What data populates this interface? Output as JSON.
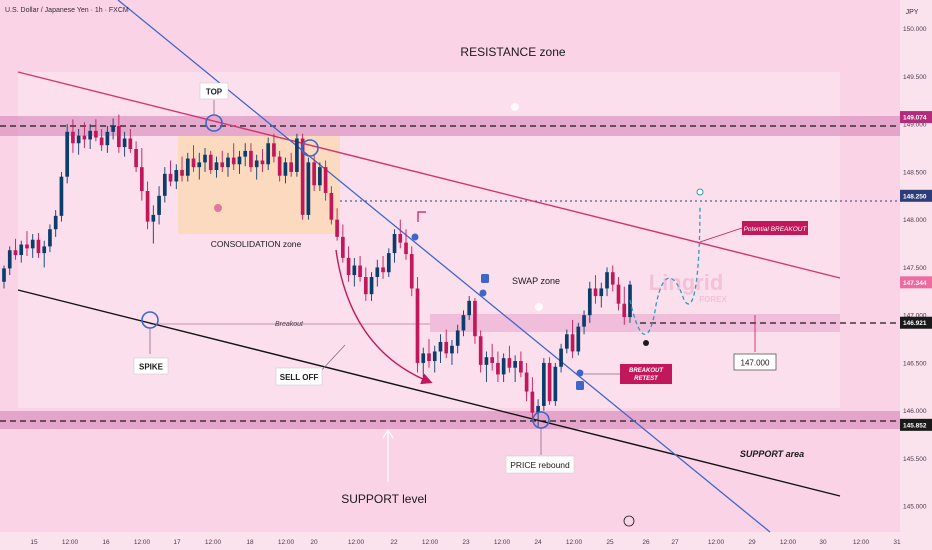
{
  "header": {
    "title": "U.S. Dollar / Japanese Yen · 1h · FXCM",
    "currency": "JPY"
  },
  "watermark": {
    "brand": "Lingrid",
    "sub": "FOREX"
  },
  "chart_data": {
    "type": "candlestick",
    "symbol": "USDJPY",
    "timeframe": "1h",
    "ylim": [
      144.73,
      150.3
    ],
    "y_ticks": [
      {
        "value": 150.0,
        "label": "150.000"
      },
      {
        "value": 149.5,
        "label": "149.500"
      },
      {
        "value": 149.0,
        "label": "149.000"
      },
      {
        "value": 148.5,
        "label": "148.500"
      },
      {
        "value": 148.0,
        "label": "148.000"
      },
      {
        "value": 147.5,
        "label": "147.500"
      },
      {
        "value": 147.0,
        "label": "147.000"
      },
      {
        "value": 146.5,
        "label": "146.500"
      },
      {
        "value": 146.0,
        "label": "146.000"
      },
      {
        "value": 145.5,
        "label": "145.500"
      },
      {
        "value": 145.0,
        "label": "145.000"
      }
    ],
    "x_ticks": [
      "15",
      "12:00",
      "16",
      "12:00",
      "17",
      "12:00",
      "18",
      "12:00",
      "20",
      "12:00",
      "22",
      "12:00",
      "23",
      "12:00",
      "24",
      "12:00",
      "25",
      "12:00",
      "26",
      "27",
      "12:00",
      "29",
      "12:00",
      "30",
      "12:00",
      "31"
    ],
    "price_badges": [
      {
        "value": 149.074,
        "label": "149.074",
        "color": "#b32b7a"
      },
      {
        "value": 148.25,
        "label": "148.250",
        "color": "#2c3e7a"
      },
      {
        "value": 147.344,
        "label": "147.344",
        "color": "#f06aa0"
      },
      {
        "value": 146.921,
        "label": "146.921",
        "color": "#1a1a1a"
      },
      {
        "value": 145.852,
        "label": "145.852",
        "color": "#1a1a1a"
      }
    ],
    "target_label": "147.000",
    "zones": [
      {
        "name": "resistance",
        "label": "RESISTANCE zone"
      },
      {
        "name": "consolidation",
        "label": "CONSOLIDATION zone"
      },
      {
        "name": "swap",
        "label": "SWAP zone"
      },
      {
        "name": "support",
        "label": "SUPPORT area"
      }
    ],
    "annotations": {
      "top": "TOP",
      "spike": "SPIKE",
      "sell_off": "SELL OFF",
      "breakout": "Breakout",
      "price_rebound": "PRICE rebound",
      "support_level": "SUPPORT level",
      "breakout_retest": [
        "BREAKOUT",
        "RETEST"
      ],
      "potential_breakout": "Potential BREAKOUT"
    },
    "candles": [
      [
        147.35,
        147.52,
        147.28,
        147.49
      ],
      [
        147.49,
        147.72,
        147.42,
        147.68
      ],
      [
        147.68,
        147.8,
        147.58,
        147.63
      ],
      [
        147.63,
        147.78,
        147.55,
        147.74
      ],
      [
        147.74,
        147.88,
        147.62,
        147.7
      ],
      [
        147.7,
        147.85,
        147.6,
        147.79
      ],
      [
        147.79,
        147.86,
        147.6,
        147.65
      ],
      [
        147.65,
        147.78,
        147.5,
        147.72
      ],
      [
        147.72,
        147.95,
        147.66,
        147.9
      ],
      [
        147.9,
        148.1,
        147.82,
        148.04
      ],
      [
        148.04,
        148.5,
        147.98,
        148.45
      ],
      [
        148.45,
        149.0,
        148.38,
        148.92
      ],
      [
        148.92,
        149.05,
        148.7,
        148.8
      ],
      [
        148.8,
        148.95,
        148.68,
        148.88
      ],
      [
        148.88,
        149.02,
        148.75,
        148.84
      ],
      [
        148.84,
        149.0,
        148.74,
        148.93
      ],
      [
        148.93,
        149.05,
        148.82,
        148.86
      ],
      [
        148.86,
        148.95,
        148.72,
        148.78
      ],
      [
        148.78,
        148.98,
        148.7,
        148.92
      ],
      [
        148.92,
        149.06,
        148.84,
        148.98
      ],
      [
        148.98,
        149.1,
        148.7,
        148.76
      ],
      [
        148.76,
        148.92,
        148.66,
        148.85
      ],
      [
        148.85,
        148.95,
        148.7,
        148.74
      ],
      [
        148.74,
        148.82,
        148.5,
        148.55
      ],
      [
        148.55,
        148.75,
        148.2,
        148.3
      ],
      [
        148.3,
        148.4,
        147.9,
        147.98
      ],
      [
        147.98,
        148.15,
        147.75,
        148.05
      ],
      [
        148.05,
        148.35,
        147.95,
        148.25
      ],
      [
        148.25,
        148.55,
        148.18,
        148.48
      ],
      [
        148.48,
        148.62,
        148.35,
        148.4
      ],
      [
        148.4,
        148.58,
        148.32,
        148.52
      ],
      [
        148.52,
        148.66,
        148.4,
        148.46
      ],
      [
        148.46,
        148.7,
        148.4,
        148.64
      ],
      [
        148.64,
        148.78,
        148.5,
        148.55
      ],
      [
        148.55,
        148.7,
        148.42,
        148.6
      ],
      [
        148.6,
        148.75,
        148.5,
        148.68
      ],
      [
        148.68,
        148.72,
        148.48,
        148.52
      ],
      [
        148.52,
        148.66,
        148.44,
        148.6
      ],
      [
        148.6,
        148.72,
        148.5,
        148.55
      ],
      [
        148.55,
        148.7,
        148.45,
        148.65
      ],
      [
        148.65,
        148.8,
        148.52,
        148.58
      ],
      [
        148.58,
        148.72,
        148.48,
        148.66
      ],
      [
        148.66,
        148.8,
        148.56,
        148.72
      ],
      [
        148.72,
        148.8,
        148.5,
        148.55
      ],
      [
        148.55,
        148.68,
        148.42,
        148.62
      ],
      [
        148.62,
        148.74,
        148.5,
        148.58
      ],
      [
        148.58,
        148.86,
        148.52,
        148.8
      ],
      [
        148.8,
        148.9,
        148.6,
        148.66
      ],
      [
        148.66,
        148.72,
        148.4,
        148.46
      ],
      [
        148.46,
        148.65,
        148.38,
        148.6
      ],
      [
        148.6,
        148.7,
        148.45,
        148.5
      ],
      [
        148.5,
        148.9,
        148.45,
        148.85
      ],
      [
        148.85,
        148.9,
        148.0,
        148.05
      ],
      [
        148.05,
        148.65,
        148.0,
        148.6
      ],
      [
        148.6,
        148.68,
        148.3,
        148.36
      ],
      [
        148.36,
        148.6,
        148.3,
        148.55
      ],
      [
        148.55,
        148.62,
        148.2,
        148.28
      ],
      [
        148.28,
        148.35,
        147.95,
        148.0
      ],
      [
        148.0,
        148.12,
        147.78,
        147.82
      ],
      [
        147.82,
        147.95,
        147.55,
        147.6
      ],
      [
        147.6,
        147.72,
        147.35,
        147.42
      ],
      [
        147.42,
        147.6,
        147.3,
        147.52
      ],
      [
        147.52,
        147.62,
        147.35,
        147.4
      ],
      [
        147.4,
        147.5,
        147.15,
        147.22
      ],
      [
        147.22,
        147.45,
        147.15,
        147.4
      ],
      [
        147.4,
        147.58,
        147.3,
        147.5
      ],
      [
        147.5,
        147.62,
        147.38,
        147.45
      ],
      [
        147.45,
        147.7,
        147.4,
        147.65
      ],
      [
        147.65,
        147.9,
        147.55,
        147.85
      ],
      [
        147.85,
        148.0,
        147.7,
        147.76
      ],
      [
        147.76,
        147.9,
        147.58,
        147.64
      ],
      [
        147.64,
        147.72,
        147.2,
        147.28
      ],
      [
        147.28,
        147.4,
        146.4,
        146.5
      ],
      [
        146.5,
        146.66,
        146.35,
        146.6
      ],
      [
        146.6,
        146.75,
        146.45,
        146.52
      ],
      [
        146.52,
        146.68,
        146.4,
        146.62
      ],
      [
        146.62,
        146.8,
        146.5,
        146.72
      ],
      [
        146.72,
        146.85,
        146.55,
        146.6
      ],
      [
        146.6,
        146.74,
        146.48,
        146.68
      ],
      [
        146.68,
        146.9,
        146.6,
        146.84
      ],
      [
        146.84,
        147.05,
        146.78,
        147.0
      ],
      [
        147.0,
        147.2,
        146.95,
        147.15
      ],
      [
        147.15,
        147.18,
        146.7,
        146.78
      ],
      [
        146.78,
        146.84,
        146.4,
        146.48
      ],
      [
        146.48,
        146.62,
        146.3,
        146.56
      ],
      [
        146.56,
        146.7,
        146.42,
        146.5
      ],
      [
        146.5,
        146.62,
        146.3,
        146.38
      ],
      [
        146.38,
        146.6,
        146.3,
        146.55
      ],
      [
        146.55,
        146.68,
        146.4,
        146.45
      ],
      [
        146.45,
        146.58,
        146.3,
        146.52
      ],
      [
        146.52,
        146.62,
        146.35,
        146.4
      ],
      [
        146.4,
        146.5,
        146.1,
        146.2
      ],
      [
        146.2,
        146.35,
        145.9,
        145.98
      ],
      [
        145.98,
        146.12,
        145.82,
        146.05
      ],
      [
        146.05,
        146.55,
        146.0,
        146.5
      ],
      [
        146.5,
        146.56,
        146.06,
        146.1
      ],
      [
        146.1,
        146.5,
        146.05,
        146.46
      ],
      [
        146.46,
        146.7,
        146.4,
        146.65
      ],
      [
        146.65,
        146.85,
        146.6,
        146.8
      ],
      [
        146.8,
        146.95,
        146.55,
        146.62
      ],
      [
        146.62,
        146.92,
        146.58,
        146.88
      ],
      [
        146.88,
        147.05,
        146.8,
        147.0
      ],
      [
        147.0,
        147.35,
        146.92,
        147.28
      ],
      [
        147.28,
        147.42,
        147.12,
        147.2
      ],
      [
        147.2,
        147.34,
        147.08,
        147.28
      ],
      [
        147.28,
        147.5,
        147.2,
        147.45
      ],
      [
        147.45,
        147.52,
        147.25,
        147.32
      ],
      [
        147.32,
        147.4,
        147.05,
        147.12
      ],
      [
        147.12,
        147.3,
        146.9,
        146.98
      ],
      [
        146.98,
        147.36,
        146.92,
        147.32
      ]
    ]
  }
}
